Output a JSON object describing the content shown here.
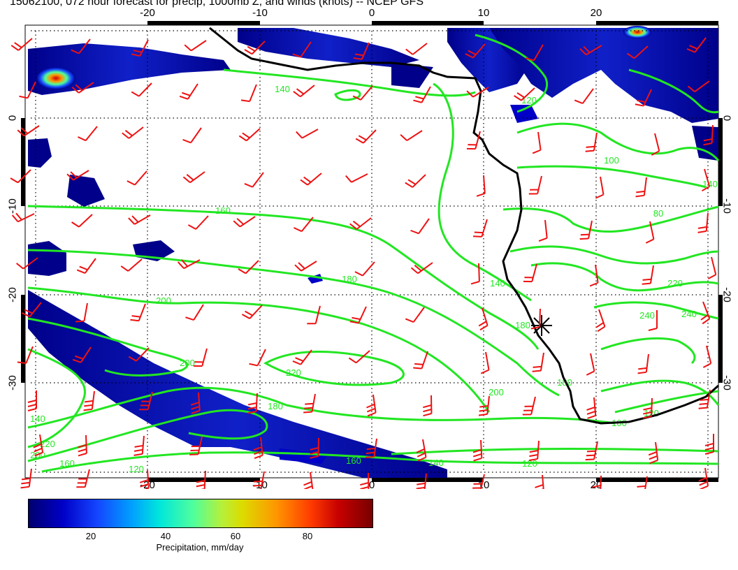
{
  "title": "15062100, 072 hour forecast for precip, 1000mb Z, and winds (knots) -- NCEP GFS",
  "map": {
    "lon_range": [
      -30,
      31
    ],
    "lat_range": [
      -40,
      10
    ],
    "lon_ticks": [
      "-20",
      "-10",
      "0",
      "10",
      "20"
    ],
    "lat_ticks": [
      "0",
      "-10",
      "-20",
      "-30"
    ],
    "contour_labels": [
      "140",
      "120",
      "100",
      "160",
      "140",
      "80",
      "180",
      "200",
      "220",
      "200",
      "220",
      "240",
      "240",
      "140",
      "200",
      "180",
      "120",
      "100",
      "180",
      "140",
      "160",
      "120",
      "140",
      "220",
      "200",
      "180",
      "160",
      "120"
    ],
    "contour_color": "#22e622",
    "wind_barb_color": "#ee1111",
    "coast_color": "#000000",
    "marker": "asterisk"
  },
  "colorbar": {
    "ticks": [
      "20",
      "40",
      "60",
      "80"
    ],
    "label": "Precipitation, mm/day",
    "colors": [
      "#00006e",
      "#0000c8",
      "#1446ff",
      "#00a0ff",
      "#00e6dc",
      "#50ff9c",
      "#b4f03c",
      "#dcdc00",
      "#ff9600",
      "#ff3c00",
      "#c80000",
      "#780000"
    ]
  }
}
